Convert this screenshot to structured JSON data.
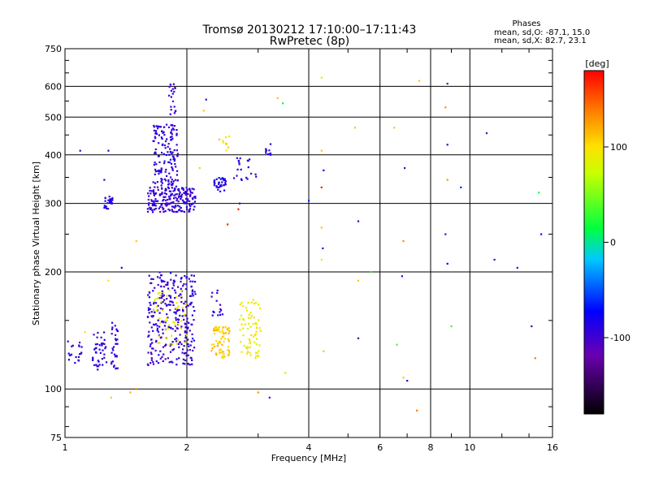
{
  "chart_data": {
    "type": "scatter",
    "title": "Tromsø 20130212 17:10:00–17:11:43",
    "subtitle": "RwPretec (8p)",
    "xlabel": "Frequency [MHz]",
    "ylabel": "Stationary phase Virtual Height [km]",
    "x_scale": "log",
    "y_scale": "log",
    "xlim": [
      1,
      16
    ],
    "ylim": [
      75,
      750
    ],
    "x_ticks": [
      1,
      2,
      4,
      6,
      8,
      10,
      16
    ],
    "y_ticks": [
      75,
      100,
      200,
      300,
      400,
      500,
      600,
      750
    ],
    "grid": true,
    "phase_info": {
      "heading": "Phases",
      "line_o": "mean, sd,O: -87.1, 15.0",
      "line_x": "mean, sd,X: 82.7, 23.1"
    },
    "colorbar": {
      "label": "[deg]",
      "range": [
        -180,
        180
      ],
      "ticks": [
        100,
        0,
        -100
      ]
    },
    "clusters": [
      {
        "x": [
          1.0,
          1.1
        ],
        "y": [
          115,
          135
        ],
        "phase": -95,
        "n": 20
      },
      {
        "x": [
          1.17,
          1.27
        ],
        "y": [
          112,
          140
        ],
        "phase": -95,
        "n": 40
      },
      {
        "x": [
          1.29,
          1.35
        ],
        "y": [
          112,
          150
        ],
        "phase": -95,
        "n": 30
      },
      {
        "x": [
          1.25,
          1.31
        ],
        "y": [
          290,
          315
        ],
        "phase": -90,
        "n": 25
      },
      {
        "x": [
          1.6,
          2.1
        ],
        "y": [
          115,
          200
        ],
        "phase": -95,
        "n": 300
      },
      {
        "x": [
          1.65,
          2.0
        ],
        "y": [
          130,
          180
        ],
        "phase": 95,
        "n": 50
      },
      {
        "x": [
          1.6,
          2.1
        ],
        "y": [
          285,
          330
        ],
        "phase": -95,
        "n": 200
      },
      {
        "x": [
          1.65,
          1.9
        ],
        "y": [
          330,
          480
        ],
        "phase": -95,
        "n": 150
      },
      {
        "x": [
          1.8,
          1.88
        ],
        "y": [
          500,
          610
        ],
        "phase": -95,
        "n": 20
      },
      {
        "x": [
          2.32,
          2.5
        ],
        "y": [
          320,
          350
        ],
        "phase": -85,
        "n": 35
      },
      {
        "x": [
          2.4,
          2.55
        ],
        "y": [
          410,
          450
        ],
        "phase": 100,
        "n": 10
      },
      {
        "x": [
          2.3,
          2.55
        ],
        "y": [
          120,
          145
        ],
        "phase": 110,
        "n": 70
      },
      {
        "x": [
          2.7,
          3.05
        ],
        "y": [
          120,
          170
        ],
        "phase": 90,
        "n": 70
      },
      {
        "x": [
          2.3,
          2.45
        ],
        "y": [
          150,
          180
        ],
        "phase": -90,
        "n": 15
      },
      {
        "x": [
          2.6,
          3.0
        ],
        "y": [
          340,
          395
        ],
        "phase": -90,
        "n": 20
      },
      {
        "x": [
          3.1,
          3.3
        ],
        "y": [
          400,
          430
        ],
        "phase": -90,
        "n": 10
      }
    ],
    "points": [
      [
        1.09,
        410,
        -90
      ],
      [
        1.25,
        345,
        -90
      ],
      [
        1.28,
        410,
        -90
      ],
      [
        1.28,
        190,
        100
      ],
      [
        1.38,
        205,
        -90
      ],
      [
        1.5,
        240,
        110
      ],
      [
        1.45,
        98,
        120
      ],
      [
        1.5,
        100,
        140
      ],
      [
        1.3,
        95,
        110
      ],
      [
        1.12,
        140,
        100
      ],
      [
        2.15,
        370,
        60
      ],
      [
        2.23,
        555,
        -100
      ],
      [
        2.2,
        520,
        110
      ],
      [
        2.52,
        265,
        170
      ],
      [
        2.7,
        300,
        -100
      ],
      [
        2.68,
        290,
        170
      ],
      [
        3.0,
        98,
        130
      ],
      [
        3.2,
        95,
        -110
      ],
      [
        3.35,
        560,
        110
      ],
      [
        3.45,
        543,
        10
      ],
      [
        3.5,
        110,
        60
      ],
      [
        4.0,
        305,
        -60
      ],
      [
        4.3,
        632,
        70
      ],
      [
        4.3,
        410,
        110
      ],
      [
        4.35,
        365,
        -80
      ],
      [
        4.3,
        330,
        170
      ],
      [
        4.3,
        260,
        110
      ],
      [
        4.33,
        230,
        -100
      ],
      [
        4.3,
        215,
        100
      ],
      [
        4.35,
        125,
        110
      ],
      [
        5.2,
        470,
        110
      ],
      [
        5.3,
        270,
        -90
      ],
      [
        5.3,
        190,
        110
      ],
      [
        5.3,
        135,
        -140
      ],
      [
        5.7,
        200,
        20
      ],
      [
        6.5,
        470,
        110
      ],
      [
        6.9,
        370,
        -110
      ],
      [
        6.85,
        240,
        130
      ],
      [
        6.8,
        195,
        -100
      ],
      [
        6.6,
        130,
        30
      ],
      [
        6.85,
        107,
        110
      ],
      [
        7.0,
        105,
        -90
      ],
      [
        7.5,
        620,
        110
      ],
      [
        7.4,
        88,
        140
      ],
      [
        8.8,
        610,
        -110
      ],
      [
        8.7,
        530,
        130
      ],
      [
        8.8,
        425,
        -90
      ],
      [
        8.8,
        345,
        130
      ],
      [
        9.5,
        330,
        -60
      ],
      [
        8.7,
        250,
        -110
      ],
      [
        8.8,
        210,
        -80
      ],
      [
        9.0,
        145,
        30
      ],
      [
        11.0,
        455,
        -110
      ],
      [
        11.5,
        215,
        -100
      ],
      [
        13.1,
        205,
        -100
      ],
      [
        14.8,
        320,
        20
      ],
      [
        15.0,
        250,
        -90
      ],
      [
        14.2,
        145,
        -90
      ],
      [
        14.5,
        120,
        140
      ]
    ]
  }
}
